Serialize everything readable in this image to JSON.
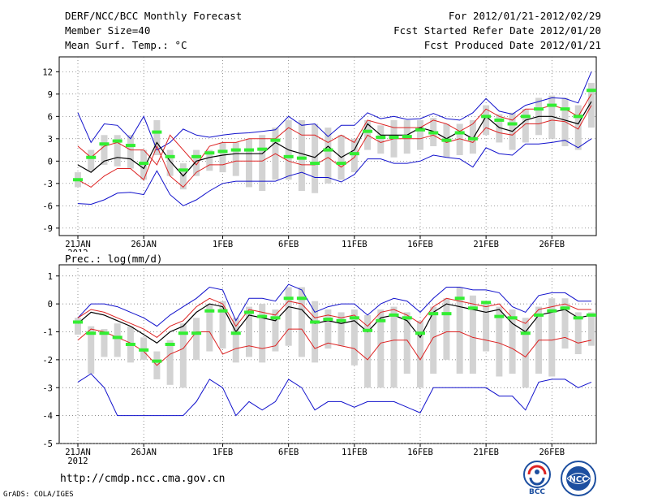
{
  "header": {
    "title": "DERF/NCC/BCC Monthly Forecast",
    "member_size": "Member Size=40",
    "variable": "Mean Surf. Temp.: °C",
    "period": "For 2012/01/21-2012/02/29",
    "fcst_started": "Fcst Started Refer Date 2012/01/20",
    "fcst_produced": "Fcst Produced Date 2012/01/21"
  },
  "footer": {
    "url": "http://cmdp.ncc.cma.gov.cn",
    "grads": "GrADS: COLA/IGES",
    "logo_bcc": "BCC",
    "logo_ncc": "NCC"
  },
  "colors": {
    "box": "#d3d3d3",
    "median": "#33ee33",
    "mean": "#000000",
    "inner": "#dd2222",
    "outer": "#1111cc",
    "grid": "#666666"
  },
  "chart_data": [
    {
      "type": "box-ensemble",
      "title": "",
      "ylabel": "Mean Surf. Temp.: °C",
      "ylim": [
        -10,
        14
      ],
      "yticks": [
        "12",
        "9",
        "6",
        "3",
        "0",
        "-3",
        "-6",
        "-9"
      ],
      "yticks_values": [
        12,
        9,
        6,
        3,
        0,
        -3,
        -6,
        -9
      ],
      "xticks": [
        "21JAN",
        "26JAN",
        "1FEB",
        "6FEB",
        "11FEB",
        "16FEB",
        "21FEB",
        "26FEB"
      ],
      "xticks_days": [
        1,
        6,
        12,
        17,
        22,
        27,
        32,
        37
      ],
      "xlabel_year": "2012",
      "days": [
        1,
        2,
        3,
        4,
        5,
        6,
        7,
        8,
        9,
        10,
        11,
        12,
        13,
        14,
        15,
        16,
        17,
        18,
        19,
        20,
        21,
        22,
        23,
        24,
        25,
        26,
        27,
        28,
        29,
        30,
        31,
        32,
        33,
        34,
        35,
        36,
        37,
        38,
        39,
        40
      ],
      "series": [
        {
          "name": "max",
          "values": [
            6.5,
            2.5,
            5,
            4.8,
            3,
            6,
            1.5,
            2.5,
            4.3,
            3.5,
            3.2,
            3.5,
            3.7,
            3.8,
            4,
            4.2,
            6,
            4.8,
            5,
            3.3,
            4.8,
            4.8,
            6.5,
            5.7,
            6,
            5.6,
            5.7,
            6.4,
            5.7,
            5.5,
            6.5,
            8.4,
            6.7,
            6.3,
            7.5,
            8,
            8.5,
            8.4,
            7.8,
            12
          ]
        },
        {
          "name": "upper",
          "values": [
            2,
            0.5,
            2,
            2.5,
            1.5,
            1.5,
            -0.5,
            3.5,
            1.5,
            -0.5,
            2,
            2.5,
            2.5,
            3,
            3,
            3,
            4.5,
            3.5,
            3.5,
            2.5,
            3.5,
            2.5,
            5.5,
            5,
            4.5,
            4.5,
            4.5,
            5.5,
            5,
            4,
            5,
            7,
            6,
            5.5,
            7,
            7,
            7.5,
            7,
            6,
            9
          ]
        },
        {
          "name": "mean",
          "values": [
            -0.5,
            -1.5,
            0,
            0.5,
            0.3,
            -1,
            2.5,
            0,
            -2,
            0,
            0.5,
            0.8,
            1,
            1,
            1,
            2.5,
            1.5,
            1,
            0.5,
            2,
            0.5,
            1.5,
            5,
            3.5,
            3.5,
            3.5,
            4.5,
            4,
            3,
            4,
            3,
            6,
            4.5,
            4,
            5.5,
            6,
            6,
            5.5,
            5,
            8
          ]
        },
        {
          "name": "lower",
          "values": [
            -2.5,
            -3.5,
            -2,
            -1,
            -1,
            -2.5,
            2,
            -2,
            -3.5,
            -1.5,
            -0.5,
            -0.5,
            0,
            0,
            0,
            1,
            0,
            -0.5,
            -0.5,
            0.5,
            -0.8,
            0.5,
            3.5,
            2.5,
            3,
            3,
            3,
            3.5,
            2.5,
            3,
            2.5,
            4.5,
            3.8,
            3.5,
            5,
            5,
            5.5,
            5.3,
            4.3,
            7.5
          ]
        },
        {
          "name": "min",
          "values": [
            -5.7,
            -5.8,
            -5.2,
            -4.3,
            -4.2,
            -4.5,
            -1.3,
            -4.5,
            -6,
            -5.2,
            -4,
            -3,
            -2.7,
            -2.7,
            -2.7,
            -2.7,
            -2,
            -1.5,
            -2.2,
            -2.2,
            -2.8,
            -1.8,
            0.3,
            0.3,
            -0.3,
            -0.3,
            0,
            0.8,
            0.5,
            0.3,
            -0.8,
            1.8,
            1,
            0.8,
            2.3,
            2.3,
            2.5,
            2.8,
            1.8,
            3
          ]
        },
        {
          "name": "median",
          "values": [
            -2.5,
            0.5,
            2.3,
            2.7,
            2.1,
            -0.3,
            3.9,
            0.6,
            -1.2,
            0.6,
            1.1,
            1.3,
            1.5,
            1.5,
            1.6,
            2.8,
            0.6,
            0.4,
            -0.3,
            1.5,
            -0.3,
            1,
            4,
            3.2,
            3.2,
            3.3,
            4.2,
            3.8,
            2.8,
            3.8,
            3,
            6,
            5.5,
            5,
            6,
            7,
            7.5,
            7,
            6,
            9.5
          ]
        },
        {
          "name": "box_q1",
          "values": [
            -3.5,
            -1.3,
            -0.5,
            -0.7,
            -1,
            -2.5,
            0.8,
            -2,
            -3.8,
            -2,
            -1.3,
            -1.5,
            -2,
            -3.5,
            -4,
            -2.5,
            -2.5,
            -4,
            -4.3,
            -3,
            -2.5,
            -1.5,
            1.5,
            1,
            0.5,
            1,
            1.5,
            2,
            0.5,
            0.8,
            1,
            3.5,
            2.5,
            1.5,
            2.5,
            3.5,
            3,
            2,
            1.5,
            4.5
          ]
        },
        {
          "name": "box_q3",
          "values": [
            -1.5,
            1.5,
            3.5,
            3.5,
            3.5,
            1.5,
            5.5,
            1.5,
            -0.3,
            1.5,
            1.5,
            2.5,
            2.5,
            3,
            3.5,
            4.5,
            5.5,
            5.5,
            5,
            4.5,
            3.5,
            3,
            5.5,
            4.8,
            5.5,
            5.5,
            5.5,
            5.8,
            5,
            5,
            5.5,
            7.5,
            6.3,
            6.5,
            7,
            8.5,
            8.8,
            8.5,
            7.5,
            10.5
          ]
        }
      ]
    },
    {
      "type": "box-ensemble",
      "title": "",
      "ylabel": "Prec.: log(mm/d)",
      "ylim": [
        -5,
        1.4
      ],
      "yticks": [
        "1",
        "0",
        "-1",
        "-2",
        "-3",
        "-4",
        "-5"
      ],
      "yticks_values": [
        1,
        0,
        -1,
        -2,
        -3,
        -4,
        -5
      ],
      "xticks": [
        "21JAN",
        "26JAN",
        "1FEB",
        "6FEB",
        "11FEB",
        "16FEB",
        "21FEB",
        "26FEB"
      ],
      "xticks_days": [
        1,
        6,
        12,
        17,
        22,
        27,
        32,
        37
      ],
      "xlabel_year": "2012",
      "days": [
        1,
        2,
        3,
        4,
        5,
        6,
        7,
        8,
        9,
        10,
        11,
        12,
        13,
        14,
        15,
        16,
        17,
        18,
        19,
        20,
        21,
        22,
        23,
        24,
        25,
        26,
        27,
        28,
        29,
        30,
        31,
        32,
        33,
        34,
        35,
        36,
        37,
        38,
        39,
        40
      ],
      "series": [
        {
          "name": "max",
          "values": [
            -0.5,
            0,
            0,
            -0.1,
            -0.3,
            -0.5,
            -0.8,
            -0.4,
            -0.1,
            0.2,
            0.6,
            0.5,
            -0.6,
            0.2,
            0.2,
            0.1,
            0.7,
            0.5,
            -0.3,
            -0.1,
            0,
            0,
            -0.4,
            0,
            0.2,
            0.1,
            -0.3,
            0.2,
            0.6,
            0.6,
            0.5,
            0.5,
            0.4,
            -0.1,
            -0.3,
            0.3,
            0.4,
            0.4,
            0.1,
            0.1
          ]
        },
        {
          "name": "upper",
          "values": [
            -0.5,
            -0.2,
            -0.3,
            -0.5,
            -0.7,
            -0.9,
            -1.2,
            -0.8,
            -0.6,
            -0.1,
            0.2,
            0,
            -0.8,
            -0.2,
            -0.3,
            -0.4,
            0.1,
            0,
            -0.5,
            -0.4,
            -0.5,
            -0.4,
            -0.8,
            -0.3,
            -0.2,
            -0.4,
            -0.7,
            -0.1,
            0.2,
            0.1,
            0,
            -0.1,
            0,
            -0.5,
            -0.7,
            -0.2,
            -0.1,
            0,
            -0.2,
            -0.2
          ]
        },
        {
          "name": "mean",
          "values": [
            -0.7,
            -0.3,
            -0.4,
            -0.6,
            -0.8,
            -1.1,
            -1.4,
            -1,
            -0.8,
            -0.3,
            0,
            -0.1,
            -1,
            -0.4,
            -0.5,
            -0.6,
            -0.1,
            -0.2,
            -0.7,
            -0.6,
            -0.7,
            -0.6,
            -1,
            -0.5,
            -0.4,
            -0.6,
            -1.2,
            -0.3,
            0,
            -0.1,
            -0.2,
            -0.3,
            -0.2,
            -0.7,
            -1,
            -0.4,
            -0.3,
            -0.2,
            -0.5,
            -0.4
          ]
        },
        {
          "name": "lower",
          "values": [
            -1.3,
            -0.9,
            -1,
            -1.2,
            -1.4,
            -1.7,
            -2.2,
            -1.8,
            -1.6,
            -1,
            -1,
            -1.8,
            -1.6,
            -1.5,
            -1.6,
            -1.5,
            -0.9,
            -0.9,
            -1.6,
            -1.4,
            -1.5,
            -1.6,
            -2,
            -1.4,
            -1.3,
            -1.3,
            -2,
            -1.2,
            -1,
            -1,
            -1.2,
            -1.3,
            -1.4,
            -1.6,
            -1.9,
            -1.3,
            -1.3,
            -1.2,
            -1.4,
            -1.3
          ]
        },
        {
          "name": "min",
          "values": [
            -2.8,
            -2.5,
            -3,
            -4,
            -4,
            -4,
            -4,
            -4,
            -4,
            -3.5,
            -2.7,
            -3,
            -4,
            -3.5,
            -3.8,
            -3.5,
            -2.7,
            -3,
            -3.8,
            -3.5,
            -3.5,
            -3.7,
            -3.5,
            -3.5,
            -3.5,
            -3.7,
            -3.9,
            -3,
            -3,
            -3,
            -3,
            -3,
            -3.3,
            -3.3,
            -3.8,
            -2.8,
            -2.7,
            -2.7,
            -3,
            -2.8
          ]
        },
        {
          "name": "median",
          "values": [
            -0.65,
            -1.05,
            -1.05,
            -1.2,
            -1.45,
            -1.65,
            -2.05,
            -1.45,
            -1.05,
            -1.05,
            -0.25,
            -0.25,
            -1.05,
            -0.3,
            -0.45,
            -0.5,
            0.2,
            0.2,
            -0.65,
            -0.55,
            -0.6,
            -0.5,
            -0.95,
            -0.6,
            -0.4,
            -0.5,
            -1.05,
            -0.35,
            -0.35,
            0.2,
            -0.15,
            0.05,
            -0.45,
            -0.5,
            -1.05,
            -0.4,
            -0.25,
            -0.15,
            -0.5,
            -0.4
          ]
        },
        {
          "name": "box_q1",
          "values": [
            -1.1,
            -2.5,
            -1.9,
            -1.9,
            -2.1,
            -2,
            -2.7,
            -2.9,
            -3,
            -2,
            -1.7,
            -1.6,
            -2.1,
            -1.9,
            -2.1,
            -1.7,
            -1.5,
            -1.9,
            -2.1,
            -1.6,
            -1.5,
            -2.2,
            -3,
            -3,
            -3,
            -2.5,
            -3,
            -2.5,
            -2,
            -2.5,
            -2.5,
            -1.7,
            -2.6,
            -2.5,
            -3,
            -2.5,
            -2.6,
            -1.6,
            -1.8,
            -1.5
          ]
        },
        {
          "name": "box_q3",
          "values": [
            -0.5,
            -0.8,
            -0.9,
            -0.7,
            -0.8,
            -1.2,
            -1.7,
            -1.3,
            -0.7,
            -0.5,
            0,
            0.1,
            -0.5,
            -0.1,
            0,
            -0.2,
            0.6,
            0.6,
            0.1,
            -0.2,
            -0.3,
            -0.2,
            -0.4,
            -0.2,
            -0.1,
            -0.3,
            -0.6,
            -0.1,
            0.2,
            0.6,
            0.3,
            0.1,
            -0.1,
            -0.2,
            -0.5,
            -0.1,
            0.2,
            0.2,
            -0.3,
            -0.3
          ]
        }
      ]
    }
  ]
}
